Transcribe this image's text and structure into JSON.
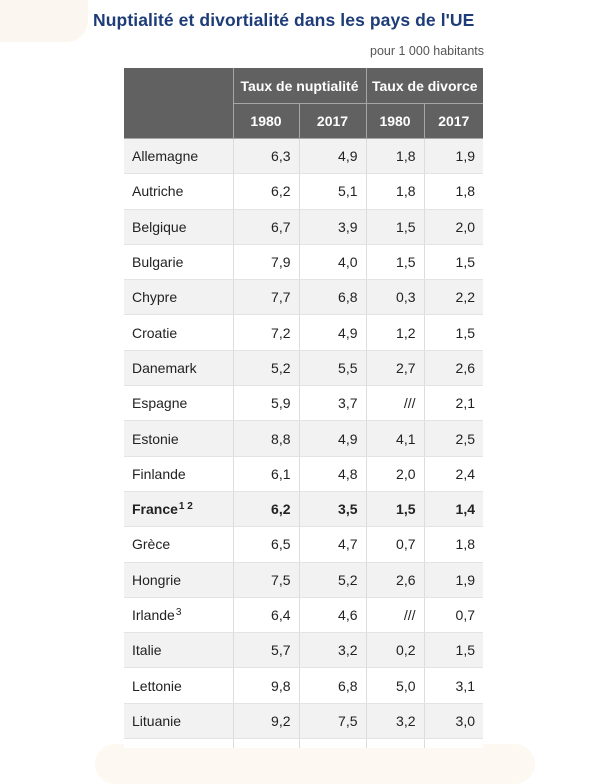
{
  "title": "Nuptialité et divortialité dans les pays de l'UE",
  "unit_note": "pour 1 000 habitants",
  "colors": {
    "title": "#1d3c78",
    "header_bg": "#616161",
    "row_alt": "#f2f2f2"
  },
  "table": {
    "group_headers": [
      "Taux de nuptialité",
      "Taux de divorce"
    ],
    "sub_headers": [
      "1980",
      "2017",
      "1980",
      "2017"
    ],
    "rows": [
      {
        "country": "Allemagne",
        "note": "",
        "values": [
          "6,3",
          "4,9",
          "1,8",
          "1,9"
        ]
      },
      {
        "country": "Autriche",
        "note": "",
        "values": [
          "6,2",
          "5,1",
          "1,8",
          "1,8"
        ]
      },
      {
        "country": "Belgique",
        "note": "",
        "values": [
          "6,7",
          "3,9",
          "1,5",
          "2,0"
        ]
      },
      {
        "country": "Bulgarie",
        "note": "",
        "values": [
          "7,9",
          "4,0",
          "1,5",
          "1,5"
        ]
      },
      {
        "country": "Chypre",
        "note": "",
        "values": [
          "7,7",
          "6,8",
          "0,3",
          "2,2"
        ]
      },
      {
        "country": "Croatie",
        "note": "",
        "values": [
          "7,2",
          "4,9",
          "1,2",
          "1,5"
        ]
      },
      {
        "country": "Danemark",
        "note": "",
        "values": [
          "5,2",
          "5,5",
          "2,7",
          "2,6"
        ]
      },
      {
        "country": "Espagne",
        "note": "",
        "values": [
          "5,9",
          "3,7",
          "///",
          "2,1"
        ]
      },
      {
        "country": "Estonie",
        "note": "",
        "values": [
          "8,8",
          "4,9",
          "4,1",
          "2,5"
        ]
      },
      {
        "country": "Finlande",
        "note": "",
        "values": [
          "6,1",
          "4,8",
          "2,0",
          "2,4"
        ]
      },
      {
        "country": "France",
        "note": "1 2",
        "bold": true,
        "values": [
          "6,2",
          "3,5",
          "1,5",
          "1,4"
        ]
      },
      {
        "country": "Grèce",
        "note": "",
        "values": [
          "6,5",
          "4,7",
          "0,7",
          "1,8"
        ]
      },
      {
        "country": "Hongrie",
        "note": "",
        "values": [
          "7,5",
          "5,2",
          "2,6",
          "1,9"
        ]
      },
      {
        "country": "Irlande",
        "note": "3",
        "values": [
          "6,4",
          "4,6",
          "///",
          "0,7"
        ]
      },
      {
        "country": "Italie",
        "note": "",
        "values": [
          "5,7",
          "3,2",
          "0,2",
          "1,5"
        ]
      },
      {
        "country": "Lettonie",
        "note": "",
        "values": [
          "9,8",
          "6,8",
          "5,0",
          "3,1"
        ]
      },
      {
        "country": "Lituanie",
        "note": "",
        "values": [
          "9,2",
          "7,5",
          "3,2",
          "3,0"
        ]
      },
      {
        "country": "",
        "note": "",
        "values": [
          "",
          "",
          "",
          ""
        ]
      }
    ]
  }
}
